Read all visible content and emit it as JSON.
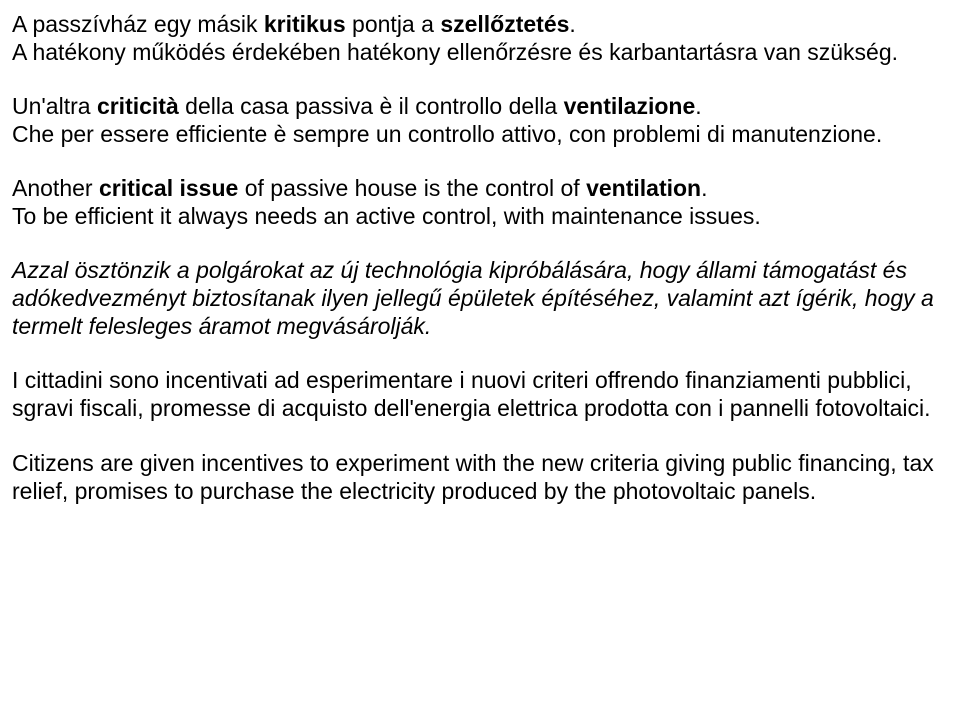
{
  "paragraphs": {
    "p1": {
      "s1a": "A passzívház egy másik ",
      "s1b": "kritikus",
      "s1c": " pontja a ",
      "s1d": "szellőztetés",
      "s1e": ".",
      "s2": "A hatékony működés érdekében hatékony ellenőrzésre és karbantartásra van szükség."
    },
    "p2": {
      "s1a": "Un'altra ",
      "s1b": "criticità",
      "s1c": " della casa passiva è il controllo della ",
      "s1d": "ventilazione",
      "s1e": ".",
      "s2": "Che per essere efficiente è sempre un controllo attivo, con problemi di manutenzione."
    },
    "p3": {
      "s1a": "Another ",
      "s1b": "critical issue",
      "s1c": " of passive house is the control of ",
      "s1d": "ventilation",
      "s1e": ".",
      "s2": "To be efficient it always needs an active control, with maintenance issues."
    },
    "p4": {
      "text": "Azzal ösztönzik a polgárokat az új technológia kipróbálására, hogy állami támogatást és adókedvezményt biztosítanak ilyen jellegű épületek építéséhez, valamint azt ígérik, hogy a termelt felesleges áramot megvásárolják."
    },
    "p5": {
      "text": "I cittadini sono incentivati ad esperimentare i nuovi criteri offrendo finanziamenti pubblici, sgravi fiscali, promesse di acquisto dell'energia elettrica prodotta con i pannelli fotovoltaici."
    },
    "p6": {
      "text": "Citizens are given incentives to experiment with the new criteria giving public financing, tax relief, promises to purchase the electricity produced by the photovoltaic panels."
    }
  }
}
